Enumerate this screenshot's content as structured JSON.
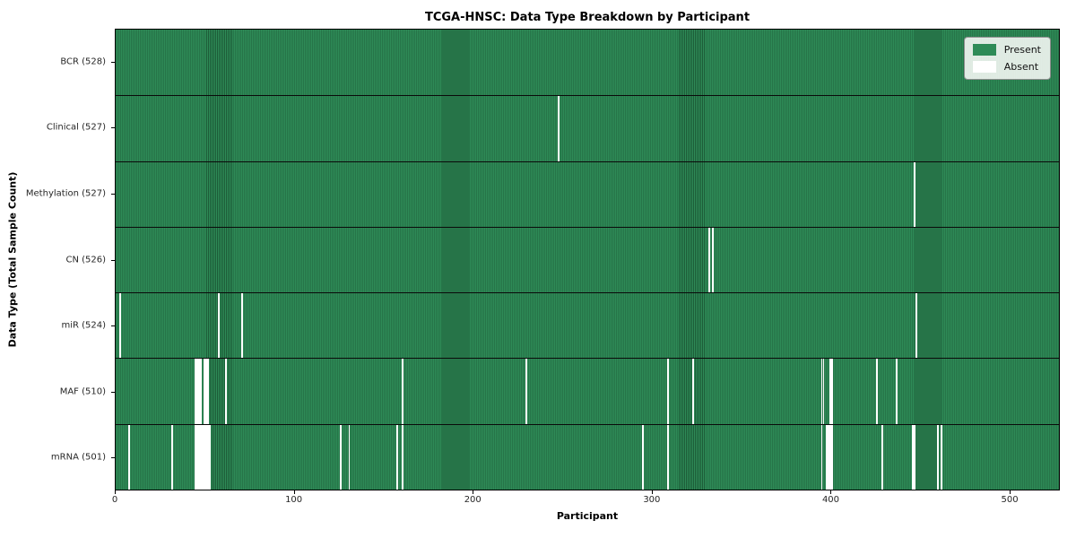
{
  "figure": {
    "title": "TCGA-HNSC: Data Type Breakdown by Participant",
    "xlabel": "Participant",
    "ylabel": "Data Type (Total Sample Count)"
  },
  "legend": {
    "present_label": "Present",
    "absent_label": "Absent"
  },
  "colors": {
    "present": "#2e8b57",
    "present_edge": "#1d5c38",
    "absent": "#ffffff",
    "row_divider": "#0a0a0a"
  },
  "chart_data": {
    "type": "heatmap",
    "title": "TCGA-HNSC: Data Type Breakdown by Participant",
    "xlabel": "Participant",
    "ylabel": "Data Type (Total Sample Count)",
    "legend_entries": [
      "Present",
      "Absent"
    ],
    "legend_position": "upper right",
    "total_participants": 528,
    "x_ticks": [
      0,
      100,
      200,
      300,
      400,
      500
    ],
    "xlim": [
      0,
      528
    ],
    "rows": [
      {
        "label": "BCR (528)",
        "data_type": "BCR",
        "present_count": 528,
        "missing_participants": []
      },
      {
        "label": "Clinical (527)",
        "data_type": "Clinical",
        "present_count": 527,
        "missing_participants": [
          247
        ]
      },
      {
        "label": "Methylation (527)",
        "data_type": "Methylation",
        "present_count": 527,
        "missing_participants": [
          446
        ]
      },
      {
        "label": "CN (526)",
        "data_type": "CN",
        "present_count": 526,
        "missing_participants": [
          331,
          333
        ]
      },
      {
        "label": "miR (524)",
        "data_type": "miR",
        "present_count": 524,
        "missing_participants": [
          2,
          57,
          70,
          447
        ]
      },
      {
        "label": "MAF (510)",
        "data_type": "MAF",
        "present_count": 510,
        "missing_participants": [
          44,
          45,
          46,
          47,
          49,
          50,
          51,
          61,
          160,
          229,
          308,
          322,
          394,
          395,
          399,
          400,
          425,
          436
        ]
      },
      {
        "label": "mRNA (501)",
        "data_type": "mRNA",
        "present_count": 501,
        "missing_participants": [
          7,
          31,
          44,
          45,
          46,
          47,
          48,
          49,
          50,
          51,
          52,
          125,
          130,
          157,
          160,
          294,
          308,
          394,
          397,
          398,
          399,
          400,
          428,
          445,
          446,
          459,
          461
        ]
      }
    ]
  }
}
